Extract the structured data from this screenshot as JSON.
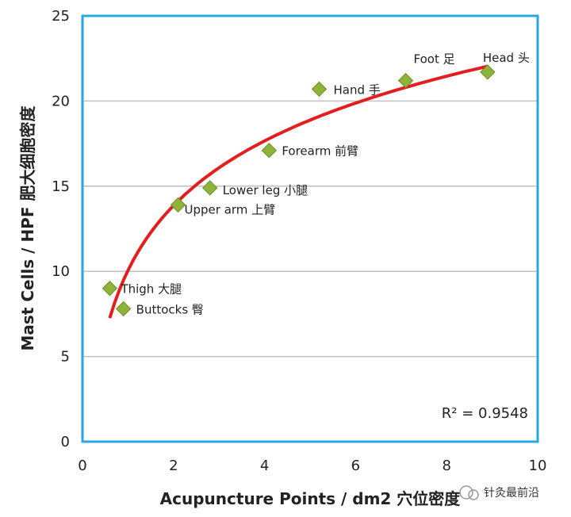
{
  "chart_data": {
    "type": "scatter",
    "xlabel": "Acupuncture Points / dm2 穴位密度",
    "ylabel": "Mast Cells / HPF 肥大细胞密度",
    "xlim": [
      0,
      10
    ],
    "ylim": [
      0,
      25
    ],
    "x_ticks": [
      "0",
      "2",
      "4",
      "6",
      "8",
      "10"
    ],
    "y_ticks": [
      "0",
      "5",
      "10",
      "15",
      "20",
      "25"
    ],
    "grid": "horizontal",
    "points": [
      {
        "x": 0.6,
        "y": 9.0,
        "label": "Thigh 大腿"
      },
      {
        "x": 0.9,
        "y": 7.8,
        "label": "Buttocks 臀"
      },
      {
        "x": 2.1,
        "y": 13.9,
        "label": "Upper arm 上臂"
      },
      {
        "x": 2.8,
        "y": 14.9,
        "label": "Lower leg 小腿"
      },
      {
        "x": 4.1,
        "y": 17.1,
        "label": "Forearm 前臂"
      },
      {
        "x": 5.2,
        "y": 20.7,
        "label": "Hand 手"
      },
      {
        "x": 7.1,
        "y": 21.2,
        "label": "Foot 足"
      },
      {
        "x": 8.9,
        "y": 21.7,
        "label": "Head 头"
      }
    ],
    "trendline": {
      "type": "logarithmic",
      "x_range": [
        0.6,
        8.9
      ],
      "r_squared": "R² = 0.9548"
    },
    "colors": {
      "marker": "#8db33a",
      "trend": "#e31e1e",
      "frame": "#29a7e1",
      "grid": "#c0c0c0"
    }
  },
  "watermark": "针灸最前沿"
}
